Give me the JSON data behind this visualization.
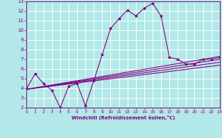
{
  "xlabel": "Windchill (Refroidissement éolien,°C)",
  "bg_color": "#b2e8e8",
  "line_color": "#800080",
  "grid_color": "#ffffff",
  "x_min": 0,
  "x_max": 23,
  "y_min": 2,
  "y_max": 13,
  "main_line_x": [
    0,
    1,
    2,
    3,
    4,
    5,
    6,
    7,
    8,
    9,
    10,
    11,
    12,
    13,
    14,
    15,
    16,
    17,
    18,
    19,
    20,
    21,
    22,
    23
  ],
  "main_line_y": [
    4.0,
    5.5,
    4.5,
    3.8,
    2.0,
    4.2,
    4.5,
    2.2,
    4.8,
    7.5,
    10.2,
    11.2,
    12.1,
    11.5,
    12.3,
    12.8,
    11.5,
    7.2,
    7.0,
    6.5,
    6.5,
    7.0,
    7.0,
    7.2
  ],
  "diag_line1_x": [
    0,
    23
  ],
  "diag_line1_y": [
    3.9,
    7.3
  ],
  "diag_line2_x": [
    0,
    23
  ],
  "diag_line2_y": [
    3.9,
    7.0
  ],
  "diag_line3_x": [
    0,
    23
  ],
  "diag_line3_y": [
    3.9,
    6.7
  ],
  "diag_line4_x": [
    0,
    23
  ],
  "diag_line4_y": [
    3.9,
    6.4
  ],
  "x_ticks": [
    0,
    1,
    2,
    3,
    4,
    5,
    6,
    7,
    8,
    9,
    10,
    11,
    12,
    13,
    14,
    15,
    16,
    17,
    18,
    19,
    20,
    21,
    22,
    23
  ],
  "y_ticks": [
    2,
    3,
    4,
    5,
    6,
    7,
    8,
    9,
    10,
    11,
    12,
    13
  ]
}
